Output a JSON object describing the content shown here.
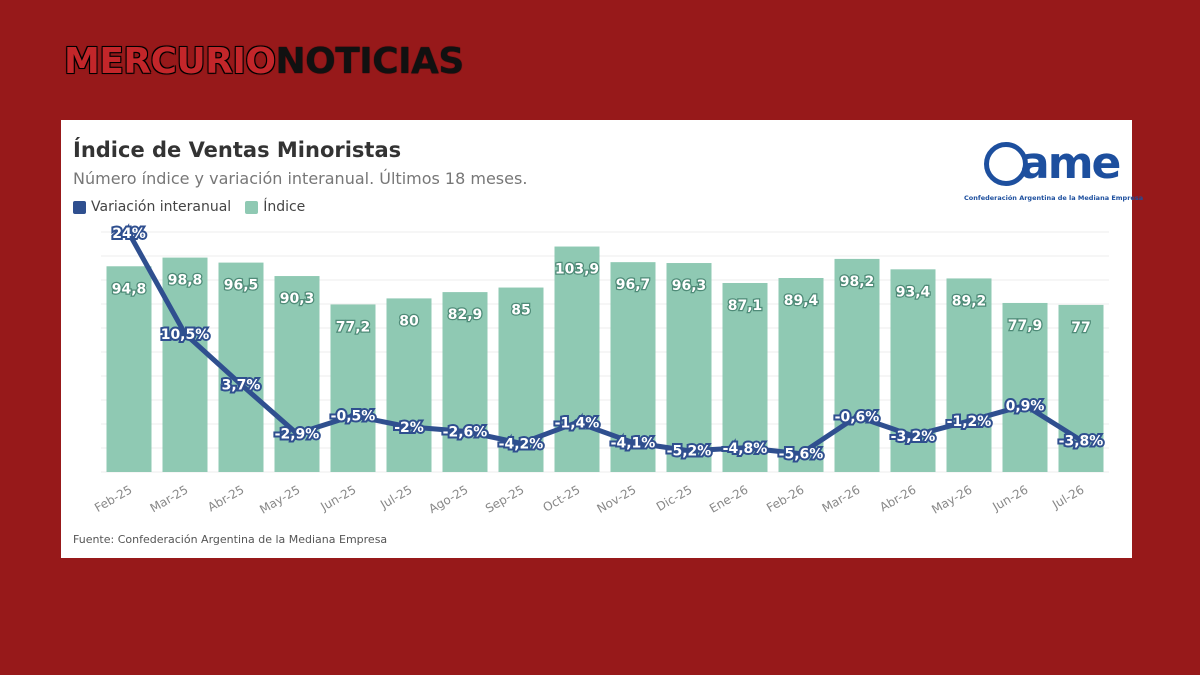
{
  "brand": {
    "part1": "MERCURIO",
    "part2": "NOTICIAS"
  },
  "logo": {
    "mark": "ame",
    "subtitle": "Confederación Argentina de la Mediana Empresa"
  },
  "colors": {
    "background": "#97191a",
    "bars": "#8fc9b3",
    "line": "#2f4f8f",
    "brand_red": "#c3262a"
  },
  "chart_data": {
    "type": "bar",
    "title": "Índice de Ventas Minoristas",
    "subtitle": "Número índice y variación interanual. Últimos 18 meses.",
    "legend": [
      "Variación interanual",
      "Índice"
    ],
    "legend_position": "top-left",
    "source": "Fuente: Confederación Argentina de la Mediana Empresa",
    "grid": true,
    "categories": [
      "Feb-25",
      "Mar-25",
      "Abr-25",
      "May-25",
      "Jun-25",
      "Jul-25",
      "Ago-25",
      "Sep-25",
      "Oct-25",
      "Nov-25",
      "Dic-25",
      "Ene-26",
      "Feb-26",
      "Mar-26",
      "Abr-26",
      "May-26",
      "Jun-26",
      "Jul-26"
    ],
    "series": [
      {
        "name": "Índice",
        "type": "bar",
        "values": [
          94.8,
          98.8,
          96.5,
          90.3,
          77.2,
          80,
          82.9,
          85,
          103.9,
          96.7,
          96.3,
          87.1,
          89.4,
          98.2,
          93.4,
          89.2,
          77.9,
          77
        ],
        "labels": [
          "94,8",
          "98,8",
          "96,5",
          "90,3",
          "77,2",
          "80",
          "82,9",
          "85",
          "103,9",
          "96,7",
          "96,3",
          "87,1",
          "89,4",
          "98,2",
          "93,4",
          "89,2",
          "77,9",
          "77"
        ]
      },
      {
        "name": "Variación interanual",
        "type": "line",
        "values": [
          24,
          10.5,
          3.7,
          -2.9,
          -0.5,
          -2,
          -2.6,
          -4.2,
          -1.4,
          -4.1,
          -5.2,
          -4.8,
          -5.6,
          -0.6,
          -3.2,
          -1.2,
          0.9,
          -3.8
        ],
        "labels": [
          "24%",
          "10,5%",
          "3,7%",
          "-2,9%",
          "-0,5%",
          "-2%",
          "-2,6%",
          "-4,2%",
          "-1,4%",
          "-4,1%",
          "-5,2%",
          "-4,8%",
          "-5,6%",
          "-0,6%",
          "-3,2%",
          "-1,2%",
          "0,9%",
          "-3,8%"
        ]
      }
    ]
  }
}
